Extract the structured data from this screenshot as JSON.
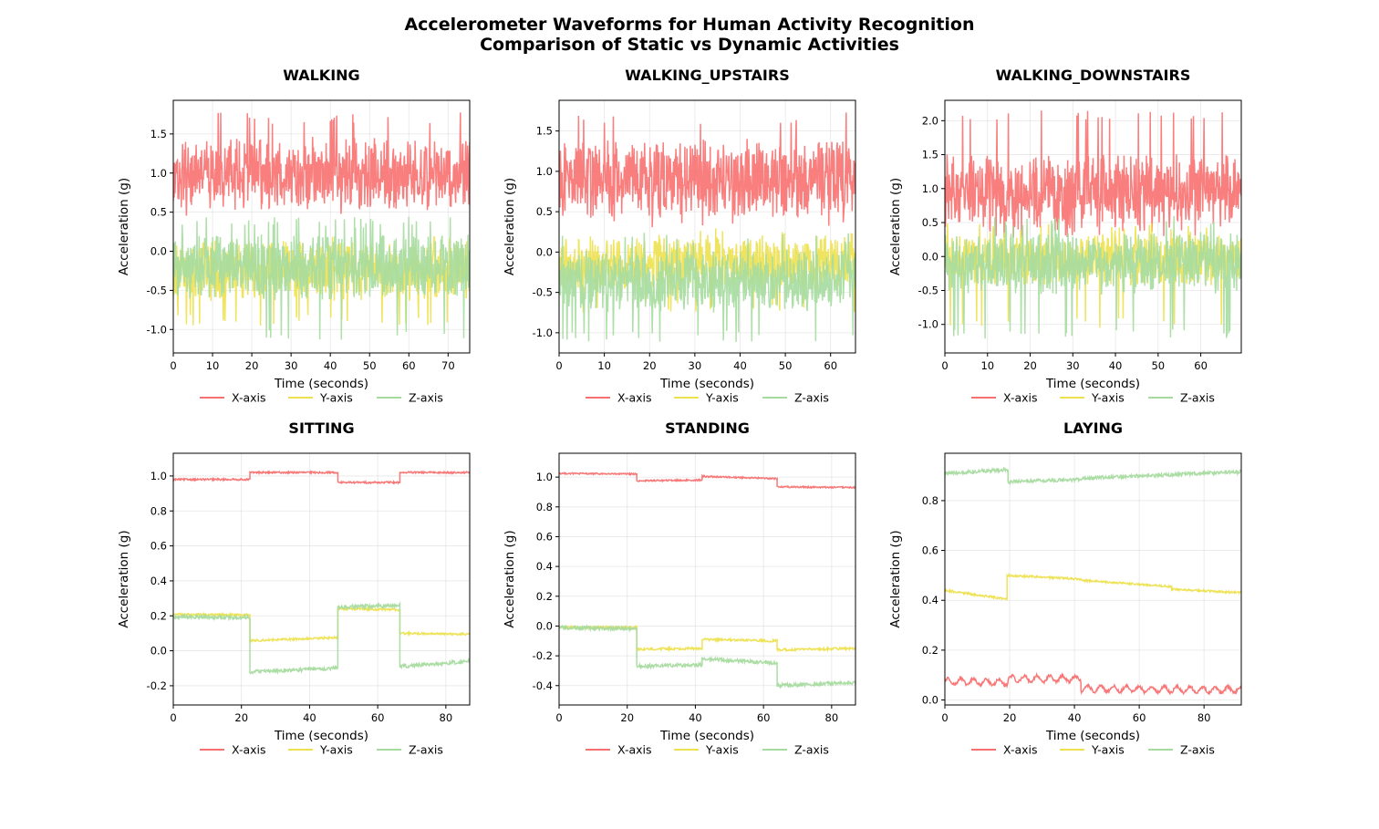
{
  "figure": {
    "title_line1": "Accelerometer Waveforms for Human Activity Recognition",
    "title_line2": "Comparison of Static vs Dynamic Activities"
  },
  "colors": {
    "x": "#f87171",
    "y": "#ede14f",
    "z": "#a6dba0"
  },
  "chart_data": [
    {
      "type": "line",
      "title": "WALKING",
      "xlabel": "Time (seconds)",
      "ylabel": "Acceleration (g)",
      "xlim": [
        0,
        75.5
      ],
      "ylim": [
        -1.3,
        1.93
      ],
      "xticks": [
        0,
        10,
        20,
        30,
        40,
        50,
        60,
        70
      ],
      "yticks": [
        -1.0,
        -0.5,
        0.0,
        0.5,
        1.0,
        1.5
      ],
      "grid": true,
      "legend": "below",
      "series": [
        {
          "name": "X-axis",
          "pattern": "dynamic",
          "mean": 1.0,
          "amp": 0.3,
          "min": 0.45,
          "max": 1.78
        },
        {
          "name": "Y-axis",
          "pattern": "dynamic",
          "mean": -0.25,
          "amp": 0.25,
          "min": -0.95,
          "max": 0.2
        },
        {
          "name": "Z-axis",
          "pattern": "dynamic",
          "mean": -0.2,
          "amp": 0.28,
          "min": -1.15,
          "max": 0.45
        }
      ]
    },
    {
      "type": "line",
      "title": "WALKING_UPSTAIRS",
      "xlabel": "Time (seconds)",
      "ylabel": "Acceleration (g)",
      "xlim": [
        0,
        65.5
      ],
      "ylim": [
        -1.25,
        1.88
      ],
      "xticks": [
        0,
        10,
        20,
        30,
        40,
        50,
        60
      ],
      "yticks": [
        -1.0,
        -0.5,
        0.0,
        0.5,
        1.0,
        1.5
      ],
      "grid": true,
      "legend": "below",
      "series": [
        {
          "name": "X-axis",
          "pattern": "dynamic",
          "mean": 0.92,
          "amp": 0.32,
          "min": 0.3,
          "max": 1.73
        },
        {
          "name": "Y-axis",
          "pattern": "dynamic",
          "mean": -0.15,
          "amp": 0.22,
          "min": -0.75,
          "max": 0.3
        },
        {
          "name": "Z-axis",
          "pattern": "dynamic",
          "mean": -0.35,
          "amp": 0.26,
          "min": -1.12,
          "max": 0.25
        }
      ]
    },
    {
      "type": "line",
      "title": "WALKING_DOWNSTAIRS",
      "xlabel": "Time (seconds)",
      "ylabel": "Acceleration (g)",
      "xlim": [
        0,
        69.5
      ],
      "ylim": [
        -1.42,
        2.3
      ],
      "xticks": [
        0,
        10,
        20,
        30,
        40,
        50,
        60
      ],
      "yticks": [
        -1.0,
        -0.5,
        0.0,
        0.5,
        1.0,
        1.5,
        2.0
      ],
      "grid": true,
      "legend": "below",
      "series": [
        {
          "name": "X-axis",
          "pattern": "dynamic",
          "mean": 0.95,
          "amp": 0.38,
          "min": 0.25,
          "max": 2.15
        },
        {
          "name": "Y-axis",
          "pattern": "dynamic",
          "mean": -0.05,
          "amp": 0.25,
          "min": -1.05,
          "max": 0.5
        },
        {
          "name": "Z-axis",
          "pattern": "dynamic",
          "mean": -0.1,
          "amp": 0.3,
          "min": -1.22,
          "max": 0.6
        }
      ]
    },
    {
      "type": "line",
      "title": "SITTING",
      "xlabel": "Time (seconds)",
      "ylabel": "Acceleration (g)",
      "xlim": [
        0,
        87
      ],
      "ylim": [
        -0.31,
        1.13
      ],
      "xticks": [
        0,
        20,
        40,
        60,
        80
      ],
      "yticks": [
        -0.2,
        0.0,
        0.2,
        0.4,
        0.6,
        0.8,
        1.0
      ],
      "grid": true,
      "legend": "below",
      "series": [
        {
          "name": "X-axis",
          "pattern": "static",
          "noise": 0.005,
          "segments": [
            [
              0,
              22.5,
              0.98
            ],
            [
              22.5,
              48.3,
              1.02
            ],
            [
              48.3,
              66.5,
              0.963
            ],
            [
              66.5,
              87,
              1.02
            ]
          ]
        },
        {
          "name": "Y-axis",
          "pattern": "static",
          "noise": 0.006,
          "segments": [
            [
              0,
              22.5,
              0.208,
              0.205
            ],
            [
              22.5,
              48.3,
              0.058,
              0.075
            ],
            [
              48.3,
              66.5,
              0.24,
              0.235
            ],
            [
              66.5,
              87,
              0.1,
              0.095
            ]
          ]
        },
        {
          "name": "Z-axis",
          "pattern": "static",
          "noise": 0.01,
          "segments": [
            [
              0,
              22.5,
              0.195,
              0.19
            ],
            [
              22.5,
              48.3,
              -0.12,
              -0.1
            ],
            [
              48.3,
              66.5,
              0.25,
              0.26
            ],
            [
              66.5,
              87,
              -0.09,
              -0.06
            ]
          ]
        }
      ]
    },
    {
      "type": "line",
      "title": "STANDING",
      "xlabel": "Time (seconds)",
      "ylabel": "Acceleration (g)",
      "xlim": [
        0,
        87
      ],
      "ylim": [
        -0.53,
        1.16
      ],
      "xticks": [
        0,
        20,
        40,
        60,
        80
      ],
      "yticks": [
        -0.4,
        -0.2,
        0.0,
        0.2,
        0.4,
        0.6,
        0.8,
        1.0
      ],
      "grid": true,
      "legend": "below",
      "series": [
        {
          "name": "X-axis",
          "pattern": "static",
          "noise": 0.005,
          "segments": [
            [
              0,
              22.8,
              1.025,
              1.02
            ],
            [
              22.8,
              42,
              0.975,
              0.98
            ],
            [
              42,
              64,
              1.005,
              0.99
            ],
            [
              64,
              87,
              0.935,
              0.93
            ]
          ]
        },
        {
          "name": "Y-axis",
          "pattern": "static",
          "noise": 0.008,
          "segments": [
            [
              0,
              22.8,
              -0.01,
              -0.01
            ],
            [
              22.8,
              42,
              -0.155,
              -0.15
            ],
            [
              42,
              64,
              -0.09,
              -0.1
            ],
            [
              64,
              87,
              -0.16,
              -0.15
            ]
          ]
        },
        {
          "name": "Z-axis",
          "pattern": "static",
          "noise": 0.012,
          "segments": [
            [
              0,
              22.8,
              -0.01,
              -0.02
            ],
            [
              22.8,
              42,
              -0.27,
              -0.26
            ],
            [
              42,
              64,
              -0.22,
              -0.25
            ],
            [
              64,
              87,
              -0.4,
              -0.38
            ]
          ]
        }
      ]
    },
    {
      "type": "line",
      "title": "LAYING",
      "xlabel": "Time (seconds)",
      "ylabel": "Acceleration (g)",
      "xlim": [
        0,
        91.5
      ],
      "ylim": [
        -0.02,
        0.99
      ],
      "xticks": [
        0,
        20,
        40,
        60,
        80
      ],
      "yticks": [
        0.0,
        0.2,
        0.4,
        0.6,
        0.8
      ],
      "grid": true,
      "legend": "below",
      "series": [
        {
          "name": "X-axis",
          "pattern": "static",
          "noise": 0.006,
          "wave": 0.012,
          "segments": [
            [
              0,
              19.5,
              0.075,
              0.07
            ],
            [
              19.5,
              42,
              0.085,
              0.085
            ],
            [
              42,
              91.5,
              0.045,
              0.04
            ]
          ]
        },
        {
          "name": "Y-axis",
          "pattern": "static",
          "noise": 0.004,
          "segments": [
            [
              0,
              19.2,
              0.44,
              0.405
            ],
            [
              19.2,
              42,
              0.5,
              0.485
            ],
            [
              42,
              70,
              0.48,
              0.455
            ],
            [
              70,
              91.5,
              0.445,
              0.43
            ]
          ]
        },
        {
          "name": "Z-axis",
          "pattern": "static",
          "noise": 0.007,
          "segments": [
            [
              0,
              19.5,
              0.91,
              0.925
            ],
            [
              19.5,
              42,
              0.875,
              0.885
            ],
            [
              42,
              91.5,
              0.89,
              0.915
            ]
          ]
        }
      ]
    }
  ]
}
